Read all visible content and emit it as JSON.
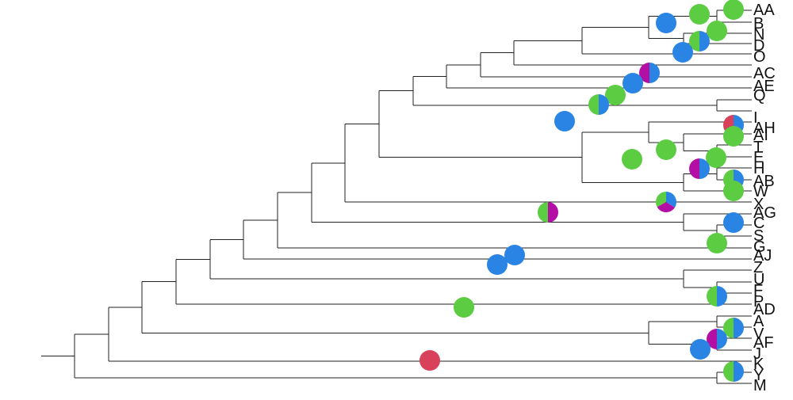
{
  "colors": {
    "blue": "#2a84e4",
    "green": "#5ccd42",
    "magenta": "#b40fa4",
    "red": "#d9405a",
    "branch": "#222222",
    "label": "#111111"
  },
  "tips": [
    "AA",
    "B",
    "N",
    "D",
    "O",
    "AC",
    "AE",
    "Q",
    "I",
    "AH",
    "AI",
    "T",
    "E",
    "H",
    "AB",
    "W",
    "X",
    "AG",
    "C",
    "S",
    "G",
    "AJ",
    "Z",
    "U",
    "F",
    "P",
    "AD",
    "A",
    "V",
    "AF",
    "J",
    "K",
    "Y",
    "M"
  ],
  "pie_markers": [
    {
      "node": "AA",
      "slices": [
        {
          "color": "green",
          "fraction": 1
        }
      ]
    },
    {
      "node": "AA+B",
      "slices": [
        {
          "color": "green",
          "fraction": 1
        }
      ]
    },
    {
      "node": "AA..D",
      "slices": [
        {
          "color": "blue",
          "fraction": 1
        }
      ]
    },
    {
      "node": "N+D",
      "slices": [
        {
          "color": "green",
          "fraction": 1
        }
      ]
    },
    {
      "node": "N",
      "slices": [
        {
          "color": "blue",
          "fraction": 0.5
        },
        {
          "color": "green",
          "fraction": 0.5
        }
      ]
    },
    {
      "node": "AA..O",
      "slices": [
        {
          "color": "blue",
          "fraction": 1
        }
      ]
    },
    {
      "node": "AA..AC",
      "slices": [
        {
          "color": "blue",
          "fraction": 0.5
        },
        {
          "color": "magenta",
          "fraction": 0.5
        }
      ]
    },
    {
      "node": "AA..AE",
      "slices": [
        {
          "color": "blue",
          "fraction": 1
        }
      ]
    },
    {
      "node": "AA..Q",
      "slices": [
        {
          "color": "green",
          "fraction": 1
        }
      ]
    },
    {
      "node": "AA..I",
      "slices": [
        {
          "color": "blue",
          "fraction": 0.5
        },
        {
          "color": "green",
          "fraction": 0.5
        }
      ]
    },
    {
      "node": "AA..AH",
      "slices": [
        {
          "color": "blue",
          "fraction": 1
        }
      ]
    },
    {
      "node": "AH",
      "slices": [
        {
          "color": "blue",
          "fraction": 0.5
        },
        {
          "color": "red",
          "fraction": 0.5
        }
      ]
    },
    {
      "node": "AI",
      "slices": [
        {
          "color": "green",
          "fraction": 1
        }
      ]
    },
    {
      "node": "AI..H",
      "slices": [
        {
          "color": "green",
          "fraction": 1
        }
      ]
    },
    {
      "node": "AI..E",
      "slices": [
        {
          "color": "green",
          "fraction": 1
        }
      ]
    },
    {
      "node": "E+H",
      "slices": [
        {
          "color": "green",
          "fraction": 1
        }
      ]
    },
    {
      "node": "E",
      "slices": [
        {
          "color": "blue",
          "fraction": 0.5
        },
        {
          "color": "magenta",
          "fraction": 0.5
        }
      ]
    },
    {
      "node": "AB",
      "slices": [
        {
          "color": "blue",
          "fraction": 0.5
        },
        {
          "color": "green",
          "fraction": 0.5
        }
      ]
    },
    {
      "node": "W",
      "slices": [
        {
          "color": "green",
          "fraction": 1
        }
      ]
    },
    {
      "node": "AB..X",
      "slices": [
        {
          "color": "blue",
          "fraction": 0.34
        },
        {
          "color": "magenta",
          "fraction": 0.33
        },
        {
          "color": "green",
          "fraction": 0.33
        }
      ]
    },
    {
      "node": "AG",
      "slices": [
        {
          "color": "magenta",
          "fraction": 0.5
        },
        {
          "color": "green",
          "fraction": 0.5
        }
      ]
    },
    {
      "node": "C",
      "slices": [
        {
          "color": "blue",
          "fraction": 1
        }
      ]
    },
    {
      "node": "G",
      "slices": [
        {
          "color": "green",
          "fraction": 1
        }
      ]
    },
    {
      "node": "AA..AJ",
      "slices": [
        {
          "color": "blue",
          "fraction": 1
        }
      ]
    },
    {
      "node": "AA..Z",
      "slices": [
        {
          "color": "blue",
          "fraction": 1
        }
      ]
    },
    {
      "node": "P",
      "slices": [
        {
          "color": "blue",
          "fraction": 0.5
        },
        {
          "color": "green",
          "fraction": 0.5
        }
      ]
    },
    {
      "node": "AA..AD",
      "slices": [
        {
          "color": "green",
          "fraction": 1
        }
      ]
    },
    {
      "node": "V",
      "slices": [
        {
          "color": "blue",
          "fraction": 0.5
        },
        {
          "color": "green",
          "fraction": 0.5
        }
      ]
    },
    {
      "node": "AF",
      "slices": [
        {
          "color": "blue",
          "fraction": 0.5
        },
        {
          "color": "magenta",
          "fraction": 0.5
        }
      ]
    },
    {
      "node": "A..J",
      "slices": [
        {
          "color": "blue",
          "fraction": 1
        }
      ]
    },
    {
      "node": "AA..K",
      "slices": [
        {
          "color": "red",
          "fraction": 1
        }
      ]
    },
    {
      "node": "Y",
      "slices": [
        {
          "color": "blue",
          "fraction": 0.5
        },
        {
          "color": "green",
          "fraction": 0.5
        }
      ]
    }
  ]
}
